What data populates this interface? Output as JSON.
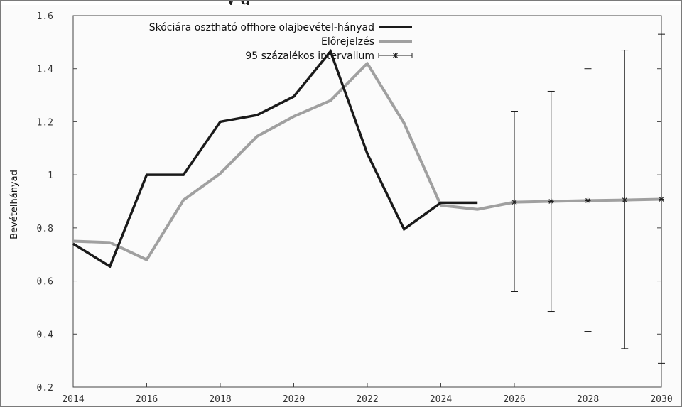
{
  "header": {
    "cropped_title": "y g"
  },
  "chart_data": {
    "type": "line",
    "title": "",
    "xlabel": "",
    "ylabel": "Bevételhányad",
    "xlim": [
      2014,
      2030
    ],
    "ylim": [
      0.2,
      1.6
    ],
    "x_ticks": [
      2014,
      2016,
      2018,
      2020,
      2022,
      2024,
      2026,
      2028,
      2030
    ],
    "y_ticks": [
      0.2,
      0.4,
      0.6,
      0.8,
      1,
      1.2,
      1.4,
      1.6
    ],
    "y_tick_labels": [
      "0.2",
      "0.4",
      "0.6",
      "0.8",
      "1",
      "1.2",
      "1.4",
      "1.6"
    ],
    "grid": false,
    "legend_position": "top-right",
    "series": [
      {
        "name": "Skóciára osztható offhore olajbevétel-hányad",
        "color": "#1a1a1a",
        "x": [
          2014,
          2015,
          2016,
          2017,
          2018,
          2019,
          2020,
          2021,
          2022,
          2023,
          2024,
          2025
        ],
        "values": [
          0.74,
          0.655,
          1.0,
          1.0,
          1.2,
          1.225,
          1.295,
          1.465,
          1.08,
          0.795,
          0.895,
          0.895
        ]
      },
      {
        "name": "Előrejelzés",
        "color": "#a0a0a0",
        "x": [
          2014,
          2015,
          2016,
          2017,
          2018,
          2019,
          2020,
          2021,
          2022,
          2023,
          2024,
          2025,
          2026,
          2027,
          2028,
          2029,
          2030
        ],
        "values": [
          0.75,
          0.745,
          0.68,
          0.905,
          1.005,
          1.145,
          1.22,
          1.28,
          1.42,
          1.195,
          0.885,
          0.87,
          0.897,
          0.9,
          0.903,
          0.905,
          0.908
        ]
      },
      {
        "name": "95 százalékos intervallum",
        "color": "#1a1a1a",
        "x": [
          2026,
          2027,
          2028,
          2029,
          2030
        ],
        "center": [
          0.897,
          0.9,
          0.903,
          0.905,
          0.908
        ],
        "lower": [
          0.56,
          0.485,
          0.41,
          0.345,
          0.29
        ],
        "upper": [
          1.24,
          1.315,
          1.4,
          1.47,
          1.53
        ]
      }
    ]
  }
}
